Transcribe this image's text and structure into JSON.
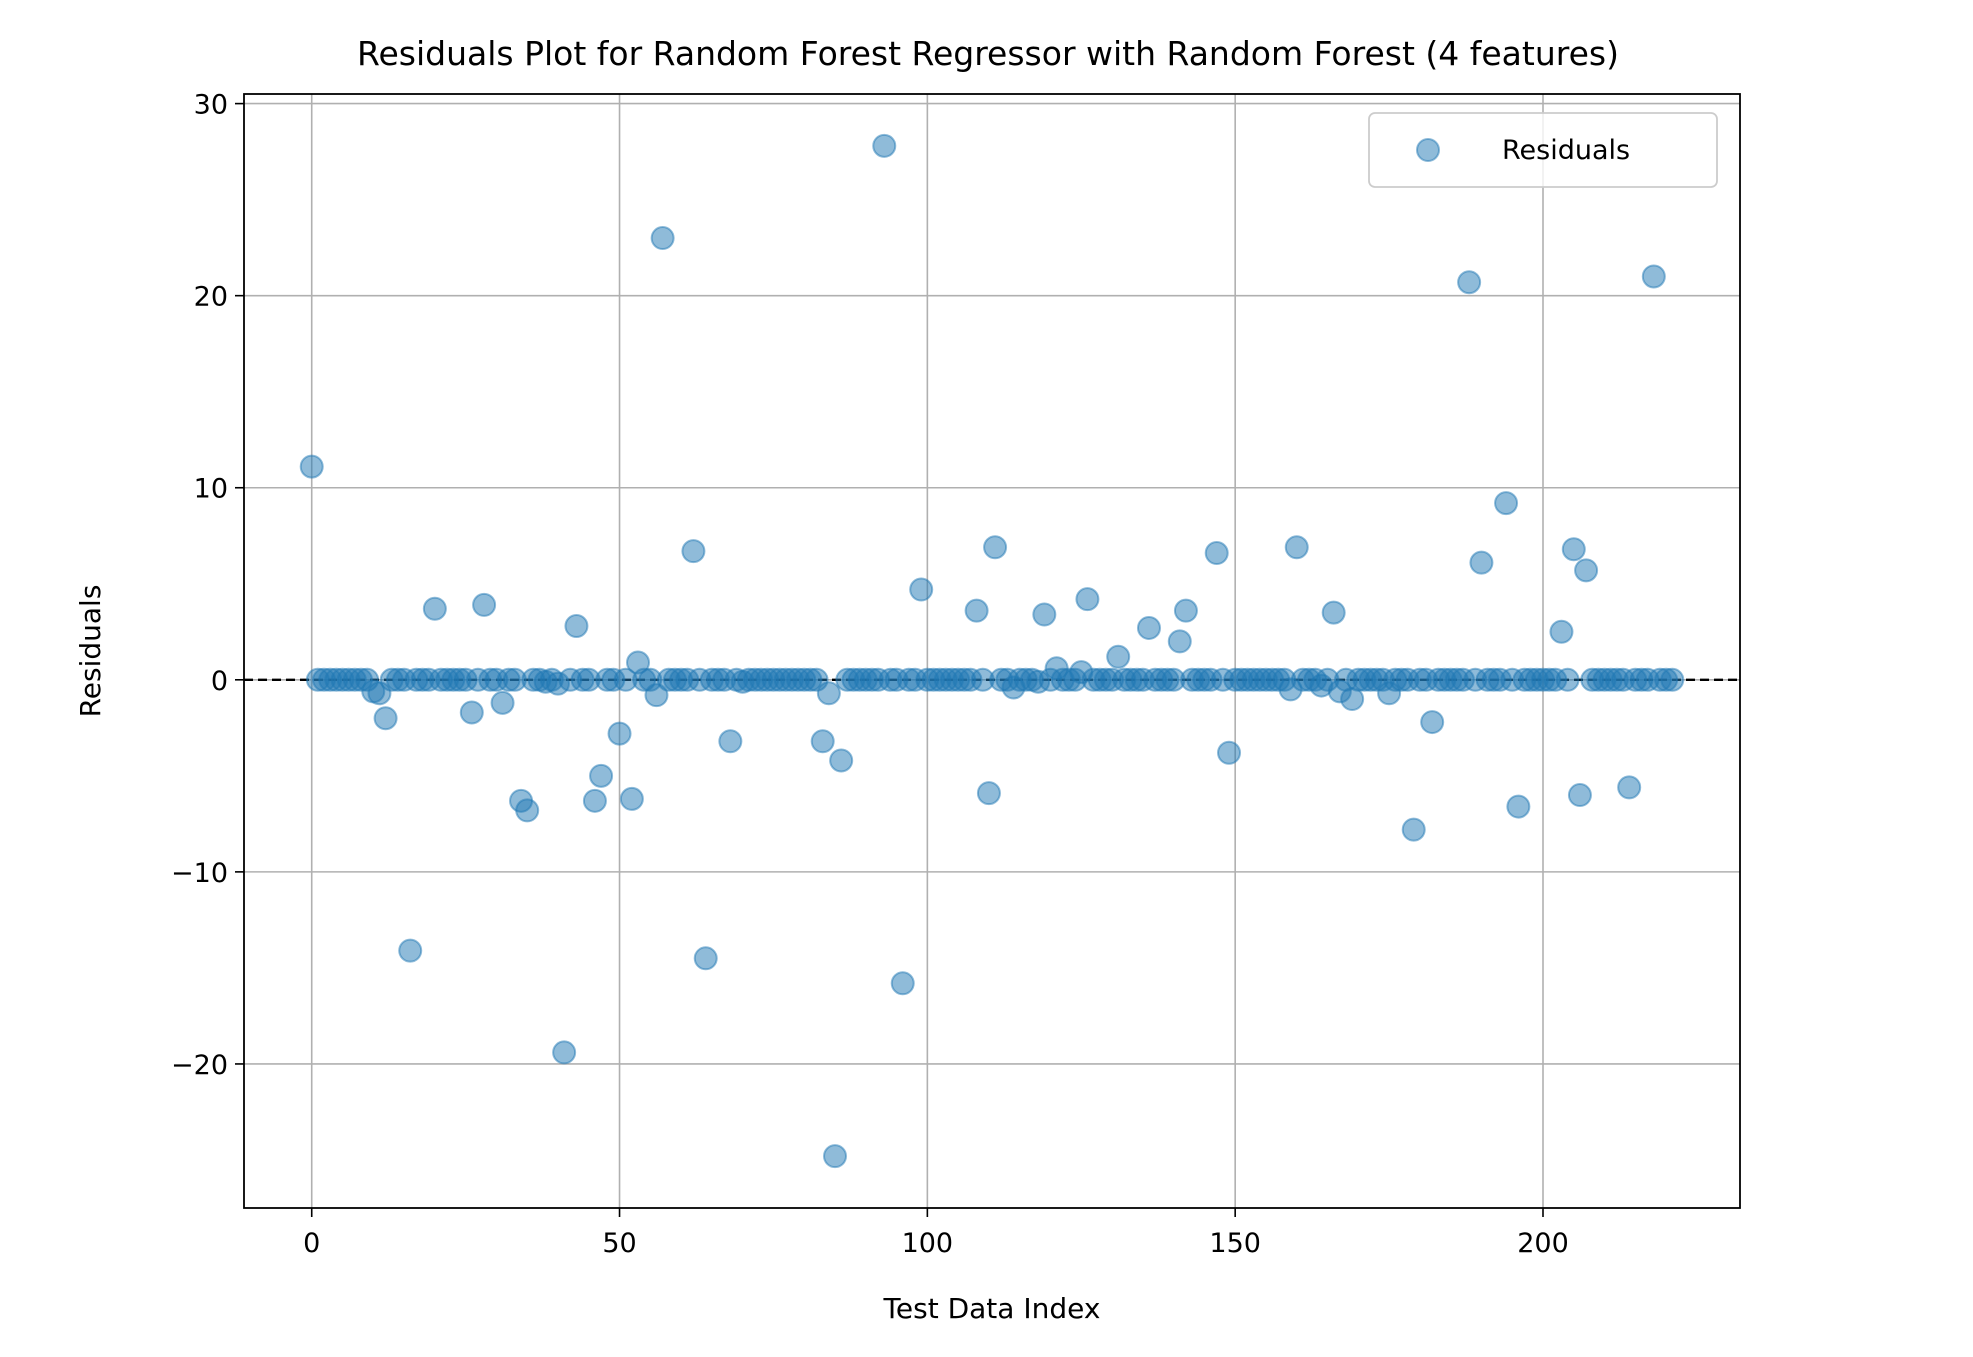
{
  "chart_data": {
    "type": "scatter",
    "title": "Residuals Plot for Random Forest Regressor with Random Forest (4 features)",
    "xlabel": "Test Data Index",
    "ylabel": "Residuals",
    "xlim": [
      -11,
      232
    ],
    "ylim": [
      -27.5,
      30.5
    ],
    "xticks": [
      0,
      50,
      100,
      150,
      200
    ],
    "yticks": [
      -20,
      -10,
      0,
      10,
      20,
      30
    ],
    "xtick_labels": [
      "0",
      "50",
      "100",
      "150",
      "200"
    ],
    "ytick_labels": [
      "−20",
      "−10",
      "0",
      "10",
      "20",
      "30"
    ],
    "grid": true,
    "legend": {
      "position": "top-right",
      "entries": [
        "Residuals"
      ]
    },
    "reference_line": {
      "y": 0,
      "style": "dashed",
      "color": "#000000"
    },
    "marker_color": "#1f77b4",
    "marker_alpha": 0.5,
    "series": [
      {
        "name": "Residuals",
        "points": [
          [
            0,
            11.1
          ],
          [
            1,
            0
          ],
          [
            2,
            0
          ],
          [
            3,
            0
          ],
          [
            4,
            0
          ],
          [
            5,
            0
          ],
          [
            6,
            0
          ],
          [
            7,
            0
          ],
          [
            8,
            0
          ],
          [
            9,
            0
          ],
          [
            10,
            -0.6
          ],
          [
            11,
            -0.7
          ],
          [
            12,
            -2.0
          ],
          [
            13,
            0
          ],
          [
            14,
            0
          ],
          [
            15,
            0
          ],
          [
            16,
            -14.1
          ],
          [
            17,
            0
          ],
          [
            18,
            0
          ],
          [
            19,
            0
          ],
          [
            20,
            3.7
          ],
          [
            21,
            0
          ],
          [
            22,
            0
          ],
          [
            23,
            0
          ],
          [
            24,
            0
          ],
          [
            25,
            0
          ],
          [
            26,
            -1.7
          ],
          [
            27,
            0
          ],
          [
            28,
            3.9
          ],
          [
            29,
            0
          ],
          [
            30,
            0
          ],
          [
            31,
            -1.2
          ],
          [
            32,
            0
          ],
          [
            33,
            0
          ],
          [
            34,
            -6.3
          ],
          [
            35,
            -6.8
          ],
          [
            36,
            0
          ],
          [
            37,
            0
          ],
          [
            38,
            -0.1
          ],
          [
            39,
            0
          ],
          [
            40,
            -0.2
          ],
          [
            41,
            -19.4
          ],
          [
            42,
            0
          ],
          [
            43,
            2.8
          ],
          [
            44,
            0
          ],
          [
            45,
            0
          ],
          [
            46,
            -6.3
          ],
          [
            47,
            -5.0
          ],
          [
            48,
            0
          ],
          [
            49,
            0
          ],
          [
            50,
            -2.8
          ],
          [
            51,
            0
          ],
          [
            52,
            -6.2
          ],
          [
            53,
            0.9
          ],
          [
            54,
            0
          ],
          [
            55,
            0
          ],
          [
            56,
            -0.8
          ],
          [
            57,
            23.0
          ],
          [
            58,
            0
          ],
          [
            59,
            0
          ],
          [
            60,
            0
          ],
          [
            61,
            0
          ],
          [
            62,
            6.7
          ],
          [
            63,
            0
          ],
          [
            64,
            -14.5
          ],
          [
            65,
            0
          ],
          [
            66,
            0
          ],
          [
            67,
            0
          ],
          [
            68,
            -3.2
          ],
          [
            69,
            0
          ],
          [
            70,
            -0.1
          ],
          [
            71,
            0
          ],
          [
            72,
            0
          ],
          [
            73,
            0
          ],
          [
            74,
            0
          ],
          [
            75,
            0
          ],
          [
            76,
            0
          ],
          [
            77,
            0
          ],
          [
            78,
            0
          ],
          [
            79,
            0
          ],
          [
            80,
            0
          ],
          [
            81,
            0
          ],
          [
            82,
            0
          ],
          [
            83,
            -3.2
          ],
          [
            84,
            -0.7
          ],
          [
            85,
            -24.8
          ],
          [
            86,
            -4.2
          ],
          [
            87,
            0
          ],
          [
            88,
            0
          ],
          [
            89,
            0
          ],
          [
            90,
            0
          ],
          [
            91,
            0
          ],
          [
            92,
            0
          ],
          [
            93,
            27.8
          ],
          [
            94,
            0
          ],
          [
            95,
            0
          ],
          [
            96,
            -15.8
          ],
          [
            97,
            0
          ],
          [
            98,
            0
          ],
          [
            99,
            4.7
          ],
          [
            100,
            0
          ],
          [
            101,
            0
          ],
          [
            102,
            0
          ],
          [
            103,
            0
          ],
          [
            104,
            0
          ],
          [
            105,
            0
          ],
          [
            106,
            0
          ],
          [
            107,
            0
          ],
          [
            108,
            3.6
          ],
          [
            109,
            0
          ],
          [
            110,
            -5.9
          ],
          [
            111,
            6.9
          ],
          [
            112,
            0
          ],
          [
            113,
            0
          ],
          [
            114,
            -0.4
          ],
          [
            115,
            0
          ],
          [
            116,
            0
          ],
          [
            117,
            0
          ],
          [
            118,
            -0.1
          ],
          [
            119,
            3.4
          ],
          [
            120,
            0
          ],
          [
            121,
            0.6
          ],
          [
            122,
            0
          ],
          [
            123,
            0
          ],
          [
            124,
            0
          ],
          [
            125,
            0.4
          ],
          [
            126,
            4.2
          ],
          [
            127,
            0
          ],
          [
            128,
            0
          ],
          [
            129,
            0
          ],
          [
            130,
            0
          ],
          [
            131,
            1.2
          ],
          [
            132,
            0
          ],
          [
            133,
            0
          ],
          [
            134,
            0
          ],
          [
            135,
            0
          ],
          [
            136,
            2.7
          ],
          [
            137,
            0
          ],
          [
            138,
            0
          ],
          [
            139,
            0
          ],
          [
            140,
            0
          ],
          [
            141,
            2.0
          ],
          [
            142,
            3.6
          ],
          [
            143,
            0
          ],
          [
            144,
            0
          ],
          [
            145,
            0
          ],
          [
            146,
            0
          ],
          [
            147,
            6.6
          ],
          [
            148,
            0
          ],
          [
            149,
            -3.8
          ],
          [
            150,
            0
          ],
          [
            151,
            0
          ],
          [
            152,
            0
          ],
          [
            153,
            0
          ],
          [
            154,
            0
          ],
          [
            155,
            0
          ],
          [
            156,
            0
          ],
          [
            157,
            0
          ],
          [
            158,
            0
          ],
          [
            159,
            -0.5
          ],
          [
            160,
            6.9
          ],
          [
            161,
            0
          ],
          [
            162,
            0
          ],
          [
            163,
            0
          ],
          [
            164,
            -0.3
          ],
          [
            165,
            0
          ],
          [
            166,
            3.5
          ],
          [
            167,
            -0.6
          ],
          [
            168,
            0
          ],
          [
            169,
            -1.0
          ],
          [
            170,
            0
          ],
          [
            171,
            0
          ],
          [
            172,
            0
          ],
          [
            173,
            0
          ],
          [
            174,
            0
          ],
          [
            175,
            -0.7
          ],
          [
            176,
            0
          ],
          [
            177,
            0
          ],
          [
            178,
            0
          ],
          [
            179,
            -7.8
          ],
          [
            180,
            0
          ],
          [
            181,
            0
          ],
          [
            182,
            -2.2
          ],
          [
            183,
            0
          ],
          [
            184,
            0
          ],
          [
            185,
            0
          ],
          [
            186,
            0
          ],
          [
            187,
            0
          ],
          [
            188,
            20.7
          ],
          [
            189,
            0
          ],
          [
            190,
            6.1
          ],
          [
            191,
            0
          ],
          [
            192,
            0
          ],
          [
            193,
            0
          ],
          [
            194,
            9.2
          ],
          [
            195,
            0
          ],
          [
            196,
            -6.6
          ],
          [
            197,
            0
          ],
          [
            198,
            0
          ],
          [
            199,
            0
          ],
          [
            200,
            0
          ],
          [
            201,
            0
          ],
          [
            202,
            0
          ],
          [
            203,
            2.5
          ],
          [
            204,
            0
          ],
          [
            205,
            6.8
          ],
          [
            206,
            -6.0
          ],
          [
            207,
            5.7
          ],
          [
            208,
            0
          ],
          [
            209,
            0
          ],
          [
            210,
            0
          ],
          [
            211,
            0
          ],
          [
            212,
            0
          ],
          [
            213,
            0
          ],
          [
            214,
            -5.6
          ],
          [
            215,
            0
          ],
          [
            216,
            0
          ],
          [
            217,
            0
          ],
          [
            218,
            21.0
          ],
          [
            219,
            0
          ],
          [
            220,
            0
          ],
          [
            221,
            0
          ]
        ]
      }
    ]
  }
}
